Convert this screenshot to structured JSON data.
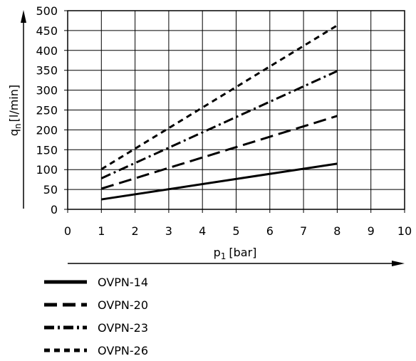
{
  "chart_data": {
    "type": "line",
    "title": "",
    "xlabel": {
      "main": "p",
      "sub": "1",
      "unit": "[bar]"
    },
    "ylabel": {
      "main": "q",
      "sub": "n",
      "unit": "[l/min]"
    },
    "xlim": [
      0,
      10
    ],
    "ylim": [
      0,
      500
    ],
    "xticks": [
      0,
      1,
      2,
      3,
      4,
      5,
      6,
      7,
      8,
      9,
      10
    ],
    "yticks": [
      0,
      50,
      100,
      150,
      200,
      250,
      300,
      350,
      400,
      450,
      500
    ],
    "grid": true,
    "legend_position": "bottom-left",
    "series": [
      {
        "name": "OVPN-14",
        "style": "solid",
        "x": [
          1,
          8
        ],
        "y": [
          25,
          115
        ]
      },
      {
        "name": "OVPN-20",
        "style": "dashed",
        "x": [
          1,
          8
        ],
        "y": [
          52,
          235
        ]
      },
      {
        "name": "OVPN-23",
        "style": "dash-dot",
        "x": [
          1,
          8
        ],
        "y": [
          78,
          348
        ]
      },
      {
        "name": "OVPN-26",
        "style": "short-dash",
        "x": [
          1,
          8
        ],
        "y": [
          101,
          463
        ]
      }
    ]
  }
}
